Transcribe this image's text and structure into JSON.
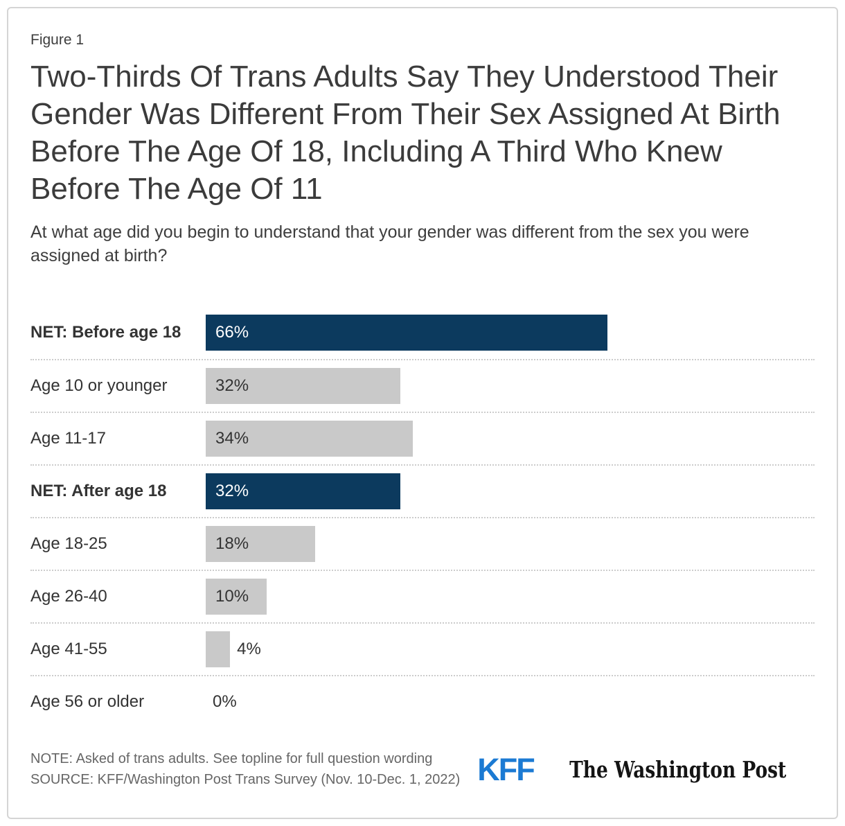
{
  "figure_label": "Figure 1",
  "title": "Two-Thirds Of Trans Adults Say They Understood Their Gender Was Different From Their Sex Assigned At Birth Before The Age Of 18, Including A Third Who Knew Before The Age Of 11",
  "subtitle": "At what age did you begin to understand that your gender was different from the sex you were assigned at birth?",
  "chart_data": {
    "type": "bar",
    "orientation": "horizontal",
    "xlim": [
      0,
      100
    ],
    "unit": "%",
    "grid": false,
    "legend": null,
    "categories": [
      "NET: Before age 18",
      "Age 10 or younger",
      "Age 11-17",
      "NET: After age 18",
      "Age 18-25",
      "Age 26-40",
      "Age 41-55",
      "Age 56 or older"
    ],
    "values": [
      66,
      32,
      34,
      32,
      18,
      10,
      4,
      0
    ],
    "rows": [
      {
        "label": "NET: Before age 18",
        "value": 66,
        "display": "66%",
        "emphasis": true,
        "color": "navy",
        "value_position": "inside"
      },
      {
        "label": "Age 10 or younger",
        "value": 32,
        "display": "32%",
        "emphasis": false,
        "color": "gray",
        "value_position": "inside"
      },
      {
        "label": "Age 11-17",
        "value": 34,
        "display": "34%",
        "emphasis": false,
        "color": "gray",
        "value_position": "inside"
      },
      {
        "label": "NET: After age 18",
        "value": 32,
        "display": "32%",
        "emphasis": true,
        "color": "navy",
        "value_position": "inside"
      },
      {
        "label": "Age 18-25",
        "value": 18,
        "display": "18%",
        "emphasis": false,
        "color": "gray",
        "value_position": "inside"
      },
      {
        "label": "Age 26-40",
        "value": 10,
        "display": "10%",
        "emphasis": false,
        "color": "gray",
        "value_position": "inside"
      },
      {
        "label": "Age 41-55",
        "value": 4,
        "display": "4%",
        "emphasis": false,
        "color": "gray",
        "value_position": "outside"
      },
      {
        "label": "Age 56 or older",
        "value": 0,
        "display": "0%",
        "emphasis": false,
        "color": "none",
        "value_position": "outside"
      }
    ],
    "colors": {
      "navy": "#0c3a5e",
      "gray": "#c9c9c9",
      "value_on_navy": "#ffffff",
      "value_on_gray": "#333333"
    }
  },
  "footer": {
    "note": "NOTE: Asked of trans adults. See topline for full question wording",
    "source": "SOURCE: KFF/Washington Post Trans Survey (Nov. 10-Dec. 1, 2022)",
    "logos": {
      "kff_text": "KFF",
      "kff_color": "#1b7ad3",
      "washington_post_text": "The Washington Post"
    }
  }
}
